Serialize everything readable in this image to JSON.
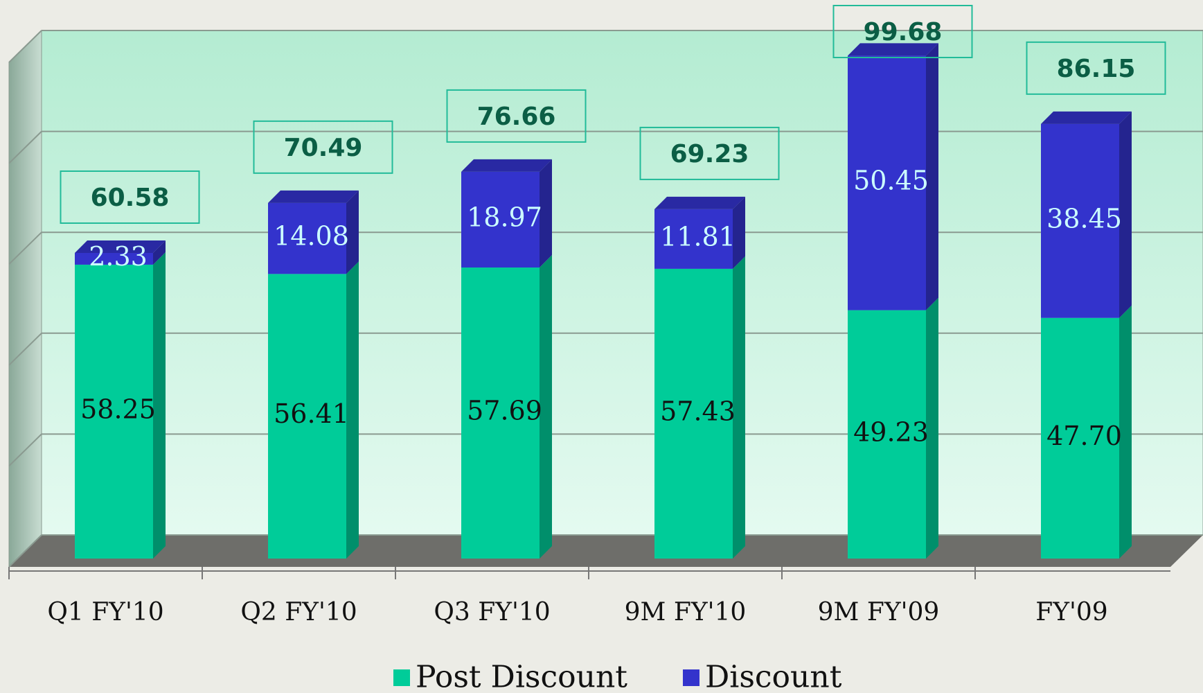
{
  "chart_data": {
    "type": "stacked-bar-3d",
    "categories": [
      "Q1 FY'10",
      "Q2 FY'10",
      "Q3 FY'10",
      "9M FY'10",
      "9M FY'09",
      "FY'09"
    ],
    "series": [
      {
        "name": "Post Discount",
        "color": "#00cc99",
        "values": [
          58.25,
          56.41,
          57.69,
          57.43,
          49.23,
          47.7
        ],
        "value_labels": [
          "58.25",
          "56.41",
          "57.69",
          "57.43",
          "49.23",
          "47.70"
        ]
      },
      {
        "name": "Discount",
        "color": "#3333cc",
        "values": [
          2.33,
          14.08,
          18.97,
          11.81,
          50.45,
          38.45
        ]
      }
    ],
    "totals": [
      60.58,
      70.49,
      76.66,
      69.23,
      99.68,
      86.15
    ],
    "ylim": [
      0,
      100
    ],
    "yticks": [
      0,
      20,
      40,
      60,
      80,
      100
    ],
    "grid": true,
    "legend": "bottom"
  }
}
